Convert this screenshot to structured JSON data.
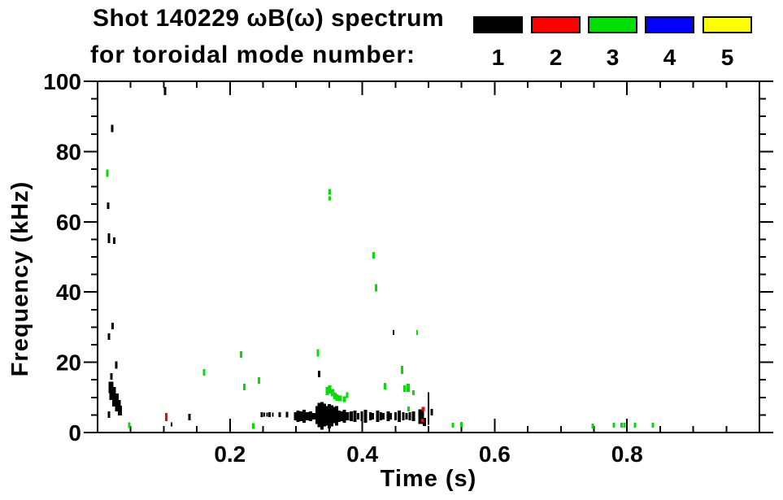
{
  "title": {
    "line1": "Shot 140229 ωB(ω) spectrum",
    "line2": "for toroidal mode number:"
  },
  "legend": {
    "entries": [
      {
        "label": "1",
        "color": "#000000"
      },
      {
        "label": "2",
        "color": "#FF0000"
      },
      {
        "label": "3",
        "color": "#00DF00"
      },
      {
        "label": "4",
        "color": "#0000FF"
      },
      {
        "label": "5",
        "color": "#FFFF00"
      }
    ]
  },
  "chart_data": {
    "type": "scatter",
    "title": "Shot 140229 ωB(ω) spectrum",
    "subtitle": "for toroidal mode number: 1 2 3 4 5",
    "xlabel": "Time (s)",
    "ylabel": "Frequency (kHz)",
    "xlim": [
      0,
      1.0
    ],
    "ylim": [
      0,
      100
    ],
    "x_major_ticks": [
      0.2,
      0.4,
      0.6,
      0.8
    ],
    "x_tick_labels": [
      "0.2",
      "0.4",
      "0.6",
      "0.8"
    ],
    "x_minor_step": 0.05,
    "y_major_ticks": [
      0,
      20,
      40,
      60,
      80,
      100
    ],
    "y_tick_labels": [
      "0",
      "20",
      "40",
      "60",
      "80",
      "100"
    ],
    "y_minor_step": 5,
    "grid": false,
    "legend_position": "top-right",
    "frame_color": "#000000",
    "point_format": "[time_s, freq_kHz, mark_width_px, mark_height_px]",
    "series": [
      {
        "name": "toroidal mode n=1",
        "color": "#000000",
        "points": [
          [
            0.102,
            97.2,
            3,
            10
          ],
          [
            0.022,
            86.6,
            3,
            9
          ],
          [
            0.016,
            64.6,
            3,
            8
          ],
          [
            0.017,
            55.3,
            3,
            12
          ],
          [
            0.025,
            54.6,
            3,
            8
          ],
          [
            0.023,
            30.3,
            3,
            8
          ],
          [
            0.017,
            27.3,
            3,
            8
          ],
          [
            0.028,
            19.2,
            3,
            9
          ],
          [
            0.021,
            16.0,
            3,
            8
          ],
          [
            0.02,
            12.9,
            6,
            14
          ],
          [
            0.023,
            11.1,
            8,
            16
          ],
          [
            0.027,
            9.3,
            8,
            16
          ],
          [
            0.031,
            7.6,
            7,
            14
          ],
          [
            0.034,
            6.3,
            5,
            12
          ],
          [
            0.017,
            5.1,
            3,
            8
          ],
          [
            0.112,
            2.3,
            2,
            5
          ],
          [
            0.139,
            4.4,
            3,
            8
          ],
          [
            0.248,
            5.1,
            3,
            6
          ],
          [
            0.252,
            5.1,
            2,
            5
          ],
          [
            0.256,
            5.1,
            2,
            5
          ],
          [
            0.26,
            5.1,
            3,
            6
          ],
          [
            0.265,
            5.1,
            2,
            5
          ],
          [
            0.275,
            5.1,
            3,
            6
          ],
          [
            0.286,
            5.1,
            3,
            7
          ],
          [
            0.299,
            4.6,
            4,
            10
          ],
          [
            0.303,
            4.6,
            4,
            14
          ],
          [
            0.308,
            4.6,
            4,
            12
          ],
          [
            0.312,
            4.6,
            4,
            16
          ],
          [
            0.317,
            4.6,
            4,
            10
          ],
          [
            0.322,
            4.6,
            4,
            12
          ],
          [
            0.327,
            4.6,
            4,
            8
          ],
          [
            0.332,
            5.0,
            4,
            22
          ],
          [
            0.335,
            5.0,
            4,
            30
          ],
          [
            0.339,
            4.8,
            4,
            34
          ],
          [
            0.343,
            5.0,
            4,
            28
          ],
          [
            0.346,
            4.8,
            4,
            24
          ],
          [
            0.35,
            4.6,
            4,
            30
          ],
          [
            0.354,
            4.8,
            4,
            26
          ],
          [
            0.358,
            5.0,
            4,
            20
          ],
          [
            0.361,
            4.8,
            4,
            24
          ],
          [
            0.365,
            4.6,
            4,
            14
          ],
          [
            0.369,
            4.6,
            4,
            12
          ],
          [
            0.373,
            4.6,
            4,
            16
          ],
          [
            0.378,
            4.6,
            4,
            10
          ],
          [
            0.383,
            4.6,
            4,
            12
          ],
          [
            0.389,
            4.6,
            4,
            14
          ],
          [
            0.394,
            4.6,
            3,
            8
          ],
          [
            0.399,
            4.6,
            3,
            12
          ],
          [
            0.405,
            4.6,
            4,
            16
          ],
          [
            0.412,
            4.6,
            3,
            10
          ],
          [
            0.416,
            4.6,
            3,
            8
          ],
          [
            0.423,
            4.6,
            4,
            14
          ],
          [
            0.428,
            4.6,
            3,
            10
          ],
          [
            0.432,
            4.6,
            3,
            8
          ],
          [
            0.439,
            4.6,
            4,
            12
          ],
          [
            0.443,
            4.6,
            3,
            8
          ],
          [
            0.45,
            4.6,
            3,
            10
          ],
          [
            0.456,
            4.6,
            4,
            14
          ],
          [
            0.462,
            4.6,
            3,
            10
          ],
          [
            0.467,
            4.6,
            3,
            8
          ],
          [
            0.472,
            4.6,
            3,
            10
          ],
          [
            0.477,
            4.6,
            4,
            12
          ],
          [
            0.335,
            16.7,
            3,
            8
          ],
          [
            0.447,
            28.5,
            2,
            6
          ],
          [
            0.489,
            4.5,
            7,
            18
          ],
          [
            0.494,
            3.0,
            4,
            10
          ],
          [
            0.5,
            6.8,
            2,
            40
          ],
          [
            0.505,
            5.8,
            3,
            8
          ]
        ]
      },
      {
        "name": "toroidal mode n=2",
        "color": "#FF0000",
        "points": [
          [
            0.104,
            4.4,
            3,
            10
          ],
          [
            0.492,
            6.7,
            4,
            5
          ],
          [
            0.491,
            3.5,
            3,
            4
          ]
        ]
      },
      {
        "name": "toroidal mode n=3",
        "color": "#00DF00",
        "points": [
          [
            0.015,
            73.8,
            3,
            9
          ],
          [
            0.048,
            2.1,
            3,
            7
          ],
          [
            0.161,
            17.1,
            3,
            8
          ],
          [
            0.217,
            22.2,
            3,
            8
          ],
          [
            0.222,
            13.0,
            3,
            8
          ],
          [
            0.235,
            1.9,
            3,
            7
          ],
          [
            0.244,
            14.8,
            3,
            8
          ],
          [
            0.333,
            22.7,
            3,
            9
          ],
          [
            0.351,
            68.5,
            3,
            7
          ],
          [
            0.351,
            66.7,
            3,
            5
          ],
          [
            0.347,
            11.8,
            4,
            10
          ],
          [
            0.351,
            12.3,
            4,
            10
          ],
          [
            0.355,
            11.3,
            4,
            9
          ],
          [
            0.359,
            10.4,
            4,
            8
          ],
          [
            0.362,
            10.0,
            4,
            8
          ],
          [
            0.367,
            9.7,
            4,
            7
          ],
          [
            0.373,
            9.5,
            4,
            7
          ],
          [
            0.377,
            10.6,
            3,
            7
          ],
          [
            0.417,
            50.5,
            3,
            8
          ],
          [
            0.421,
            41.2,
            3,
            9
          ],
          [
            0.434,
            13.2,
            3,
            8
          ],
          [
            0.46,
            17.8,
            3,
            10
          ],
          [
            0.464,
            12.5,
            3,
            8
          ],
          [
            0.469,
            12.7,
            4,
            10
          ],
          [
            0.47,
            6.7,
            3,
            6
          ],
          [
            0.477,
            11.3,
            3,
            6
          ],
          [
            0.483,
            28.5,
            2,
            6
          ],
          [
            0.537,
            2.1,
            3,
            6
          ],
          [
            0.55,
            2.3,
            3,
            6
          ],
          [
            0.748,
            1.9,
            3,
            6
          ],
          [
            0.78,
            2.1,
            3,
            6
          ],
          [
            0.792,
            2.1,
            3,
            6
          ],
          [
            0.796,
            2.1,
            3,
            6
          ],
          [
            0.812,
            2.1,
            3,
            6
          ],
          [
            0.839,
            2.1,
            3,
            6
          ]
        ]
      },
      {
        "name": "toroidal mode n=4",
        "color": "#0000FF",
        "points": []
      },
      {
        "name": "toroidal mode n=5",
        "color": "#FFFF00",
        "points": []
      }
    ]
  }
}
